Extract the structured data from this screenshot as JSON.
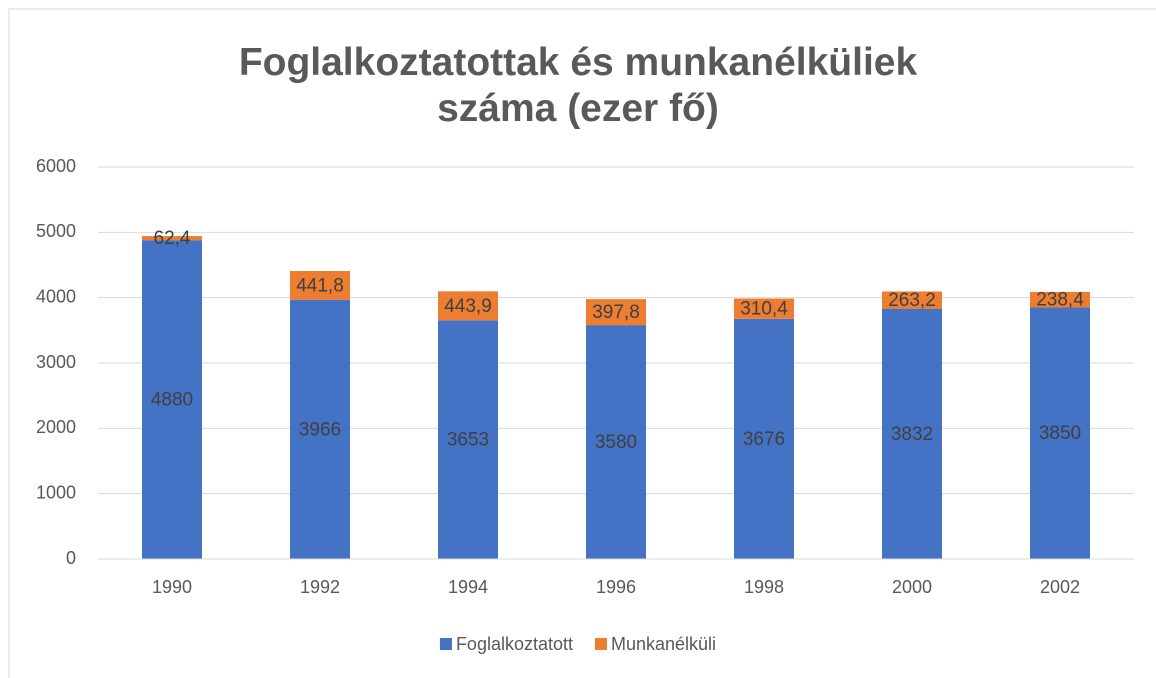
{
  "chart_data": {
    "type": "stacked_bar",
    "title": "Foglalkoztatottak és munkanélküliek száma (ezer fő)",
    "categories": [
      "1990",
      "1992",
      "1994",
      "1996",
      "1998",
      "2000",
      "2002"
    ],
    "series": [
      {
        "name": "Foglalkoztatott",
        "color": "#4472c4",
        "values": [
          4880,
          3966,
          3653,
          3580,
          3676,
          3832,
          3850
        ]
      },
      {
        "name": "Munkanélküli",
        "color": "#ed7d31",
        "values": [
          62.4,
          441.8,
          443.9,
          397.8,
          310.4,
          263.2,
          238.4
        ],
        "value_labels": [
          "62,4",
          "441,8",
          "443,9",
          "397,8",
          "310,4",
          "263,2",
          "238,4"
        ]
      }
    ],
    "ylim": [
      0,
      6000
    ],
    "yticks": [
      0,
      1000,
      2000,
      3000,
      4000,
      5000,
      6000
    ],
    "grid": true,
    "legend": "bottom"
  }
}
